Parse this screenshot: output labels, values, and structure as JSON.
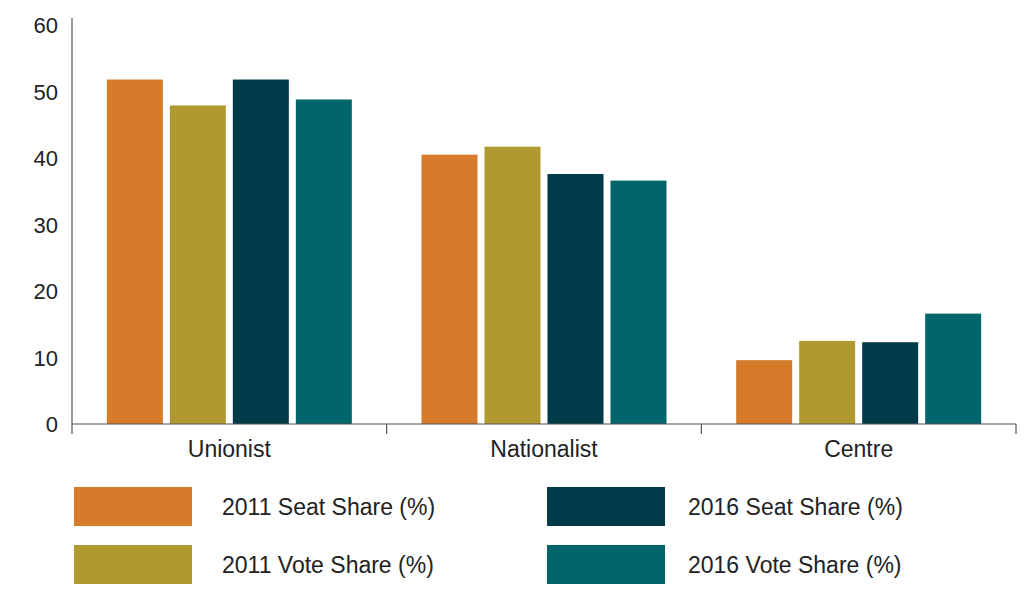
{
  "chart_data": {
    "type": "bar",
    "categories": [
      "Unionist",
      "Nationalist",
      "Centre"
    ],
    "series": [
      {
        "name": "2011 Seat Share (%)",
        "color": "#d67b2a",
        "values": [
          51.8,
          40.5,
          9.6
        ]
      },
      {
        "name": "2011 Vote Share (%)",
        "color": "#b09a30",
        "values": [
          47.9,
          41.7,
          12.5
        ]
      },
      {
        "name": "2016 Seat Share (%)",
        "color": "#003b4a",
        "values": [
          51.8,
          37.6,
          12.3
        ]
      },
      {
        "name": "2016 Vote Share (%)",
        "color": "#00666b",
        "values": [
          48.8,
          36.6,
          16.6
        ]
      }
    ],
    "ylim": [
      0,
      60
    ],
    "yticks": [
      0,
      10,
      20,
      30,
      40,
      50,
      60
    ],
    "grid": false,
    "legend": "bottom"
  }
}
